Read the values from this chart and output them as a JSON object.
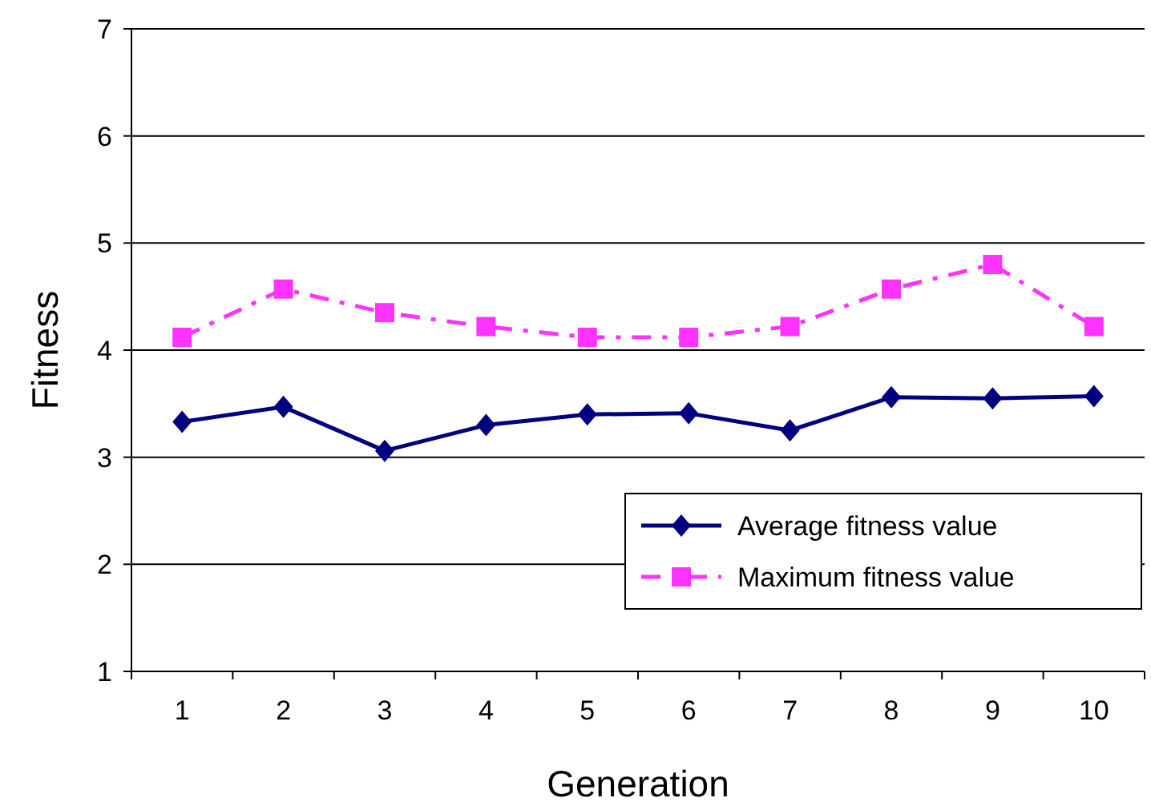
{
  "chart_data": {
    "type": "line",
    "xlabel": "Generation",
    "ylabel": "Fitness",
    "categories": [
      "1",
      "2",
      "3",
      "4",
      "5",
      "6",
      "7",
      "8",
      "9",
      "10"
    ],
    "series": [
      {
        "name": "Average fitness value",
        "color": "#000080",
        "marker": "diamond",
        "line_style": "solid",
        "values": [
          3.33,
          3.47,
          3.06,
          3.3,
          3.4,
          3.41,
          3.25,
          3.56,
          3.55,
          3.57
        ]
      },
      {
        "name": "Maximum fitness value",
        "color": "#ff33ff",
        "marker": "square",
        "line_style": "dashed",
        "values": [
          4.12,
          4.57,
          4.35,
          4.22,
          4.12,
          4.12,
          4.22,
          4.57,
          4.8,
          4.22
        ]
      }
    ],
    "ylim": [
      1,
      7
    ],
    "yticks": [
      1,
      2,
      3,
      4,
      5,
      6,
      7
    ],
    "grid": "y",
    "legend": "bottom right"
  }
}
